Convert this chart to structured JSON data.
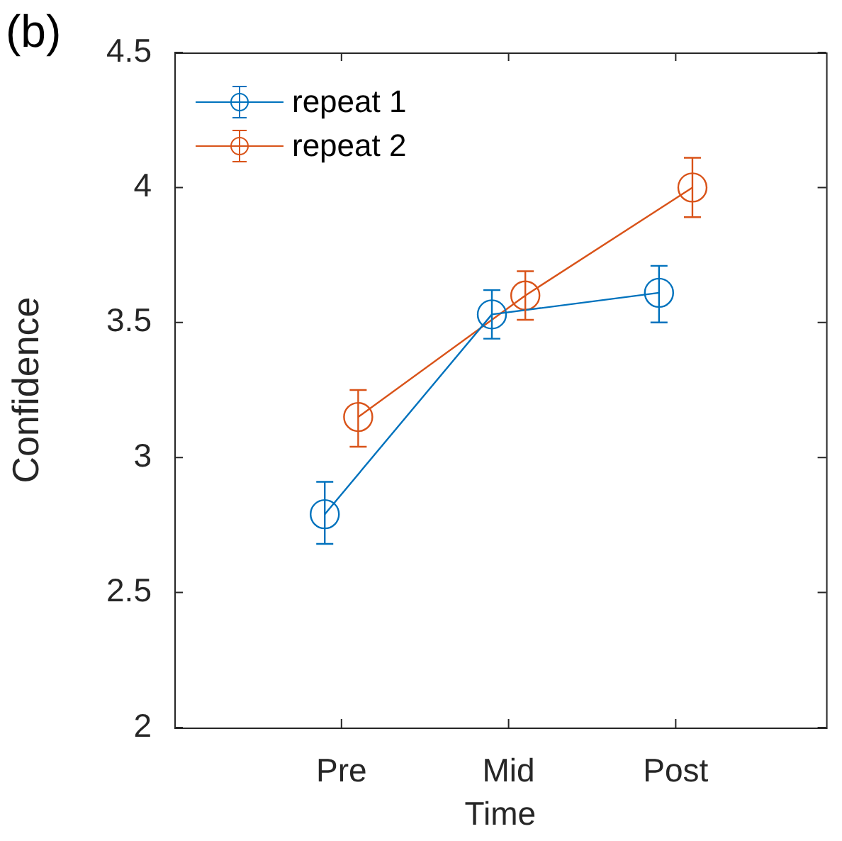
{
  "chart_data": {
    "type": "line",
    "title": "(b)",
    "xlabel": "Time",
    "ylabel": "Confidence",
    "categories": [
      "Pre",
      "Mid",
      "Post"
    ],
    "ylim": [
      2,
      4.5
    ],
    "yticks": [
      2,
      2.5,
      3,
      3.5,
      4,
      4.5
    ],
    "series": [
      {
        "name": "repeat 1",
        "color": "#0072bd",
        "values": [
          2.79,
          3.53,
          3.61
        ],
        "errors": [
          [
            2.68,
            2.91
          ],
          [
            3.44,
            3.62
          ],
          [
            3.5,
            3.71
          ]
        ]
      },
      {
        "name": "repeat 2",
        "color": "#d95319",
        "values": [
          3.15,
          3.6,
          4.0
        ],
        "errors": [
          [
            3.04,
            3.25
          ],
          [
            3.51,
            3.69
          ],
          [
            3.89,
            4.11
          ]
        ]
      }
    ],
    "marker": "circle",
    "line_style": "solid",
    "grid": false,
    "legend": "top left"
  }
}
